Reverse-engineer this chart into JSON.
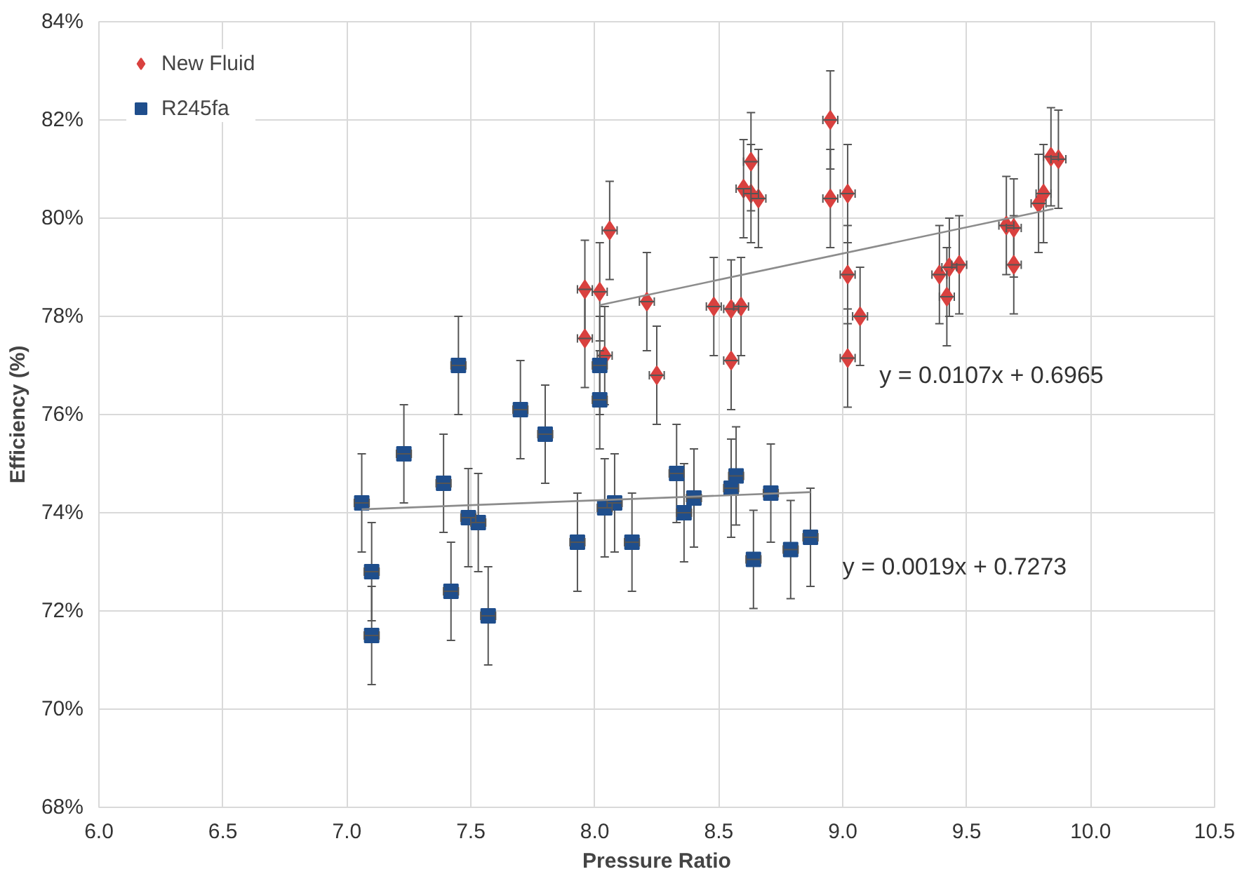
{
  "chart_data": {
    "type": "scatter",
    "xlabel": "Pressure Ratio",
    "ylabel": "Efficiency (%)",
    "xlim": [
      6.0,
      10.5
    ],
    "ylim": [
      68,
      84
    ],
    "xticks": [
      {
        "value": 6.0,
        "label": "6.0"
      },
      {
        "value": 6.5,
        "label": "6.5"
      },
      {
        "value": 7.0,
        "label": "7.0"
      },
      {
        "value": 7.5,
        "label": "7.5"
      },
      {
        "value": 8.0,
        "label": "8.0"
      },
      {
        "value": 8.5,
        "label": "8.5"
      },
      {
        "value": 9.0,
        "label": "9.0"
      },
      {
        "value": 9.5,
        "label": "9.5"
      },
      {
        "value": 10.0,
        "label": "10.0"
      },
      {
        "value": 10.5,
        "label": "10.5"
      }
    ],
    "yticks": [
      {
        "value": 68,
        "label": "68%"
      },
      {
        "value": 70,
        "label": "70%"
      },
      {
        "value": 72,
        "label": "72%"
      },
      {
        "value": 74,
        "label": "74%"
      },
      {
        "value": 76,
        "label": "76%"
      },
      {
        "value": 78,
        "label": "78%"
      },
      {
        "value": 80,
        "label": "80%"
      },
      {
        "value": 82,
        "label": "82%"
      },
      {
        "value": 84,
        "label": "84%"
      }
    ],
    "grid": true,
    "legend": "top left",
    "series": [
      {
        "name": "New Fluid",
        "color": "#d9413f",
        "marker": "diamond",
        "x": [
          7.96,
          7.96,
          8.02,
          8.06,
          8.04,
          8.21,
          8.25,
          8.48,
          8.55,
          8.55,
          8.59,
          8.6,
          8.63,
          8.63,
          8.66,
          8.95,
          8.95,
          9.02,
          9.02,
          9.02,
          9.07,
          9.39,
          9.42,
          9.43,
          9.47,
          9.66,
          9.69,
          9.69,
          9.79,
          9.81,
          9.84,
          9.87
        ],
        "values": [
          78.55,
          77.55,
          78.5,
          79.75,
          77.2,
          78.3,
          76.8,
          78.2,
          78.15,
          77.1,
          78.2,
          80.6,
          81.15,
          80.5,
          80.4,
          82.0,
          80.4,
          80.5,
          78.85,
          77.15,
          78.0,
          78.85,
          78.4,
          79.0,
          79.05,
          79.85,
          79.8,
          79.05,
          80.3,
          80.5,
          81.25,
          81.2
        ],
        "errors": [
          1,
          1,
          1,
          1,
          1,
          1,
          1,
          1,
          1,
          1,
          1,
          1,
          1,
          1,
          1,
          1,
          1,
          1,
          1,
          1,
          1,
          1,
          1,
          1,
          1,
          1,
          1,
          1,
          1,
          1,
          1,
          1
        ],
        "xerrors": [
          0.03,
          0.03,
          0.03,
          0.03,
          0.03,
          0.03,
          0.03,
          0.03,
          0.03,
          0.03,
          0.03,
          0.03,
          0.03,
          0.03,
          0.03,
          0.03,
          0.03,
          0.03,
          0.03,
          0.03,
          0.03,
          0.03,
          0.03,
          0.03,
          0.03,
          0.03,
          0.03,
          0.03,
          0.03,
          0.03,
          0.03,
          0.03
        ]
      },
      {
        "name": "R245fa",
        "color": "#1f4e8c",
        "marker": "square",
        "x": [
          7.06,
          7.1,
          7.1,
          7.23,
          7.39,
          7.42,
          7.45,
          7.49,
          7.53,
          7.57,
          7.7,
          7.8,
          7.93,
          8.02,
          8.02,
          8.04,
          8.08,
          8.15,
          8.33,
          8.36,
          8.4,
          8.55,
          8.57,
          8.64,
          8.71,
          8.79,
          8.87
        ],
        "values": [
          74.2,
          72.8,
          71.5,
          75.2,
          74.6,
          72.4,
          77.0,
          73.9,
          73.8,
          71.9,
          76.1,
          75.6,
          73.4,
          77.0,
          76.3,
          74.1,
          74.2,
          73.4,
          74.8,
          74.0,
          74.3,
          74.5,
          74.75,
          73.05,
          74.4,
          73.25,
          73.5
        ],
        "errors": [
          1,
          1,
          1,
          1,
          1,
          1,
          1,
          1,
          1,
          1,
          1,
          1,
          1,
          1,
          1,
          1,
          1,
          1,
          1,
          1,
          1,
          1,
          1,
          1,
          1,
          1,
          1
        ],
        "xerrors": [
          0.03,
          0.03,
          0.03,
          0.03,
          0.03,
          0.03,
          0.03,
          0.03,
          0.03,
          0.03,
          0.03,
          0.03,
          0.03,
          0.03,
          0.03,
          0.03,
          0.03,
          0.03,
          0.03,
          0.03,
          0.03,
          0.03,
          0.03,
          0.03,
          0.03,
          0.03,
          0.03
        ]
      },
      {
        "type": "line",
        "color": "#8c8c8c",
        "x": [
          8.02,
          9.85
        ],
        "values": [
          78.23,
          80.19
        ]
      },
      {
        "type": "line",
        "color": "#8c8c8c",
        "x": [
          7.06,
          8.87
        ],
        "values": [
          74.07,
          74.42
        ]
      }
    ],
    "annotations": [
      "y = 0.0107x + 0.6965",
      "y = 0.0019x + 0.7273"
    ]
  }
}
